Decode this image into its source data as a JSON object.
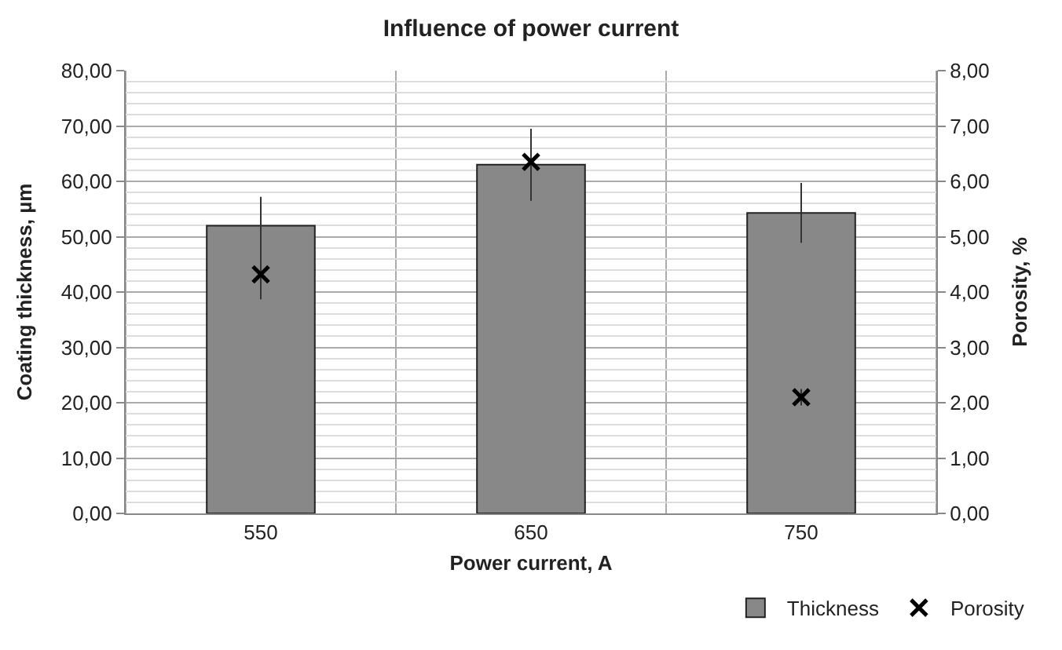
{
  "chart_data": {
    "type": "bar",
    "title": "Influence of power current",
    "xlabel": "Power current, A",
    "ylabel": "Coating thickness, µm",
    "y2label": "Porosity, %",
    "categories": [
      "550",
      "650",
      "750"
    ],
    "series": [
      {
        "name": "Thickness",
        "color": "#888888",
        "values": [
          52.0,
          63.0,
          54.3
        ],
        "errors": [
          5.2,
          6.5,
          5.4
        ]
      },
      {
        "name": "Porosity",
        "type": "scatter",
        "axis": "y2",
        "marker": "cross",
        "color": "#000000",
        "values": [
          4.32,
          6.35,
          2.1
        ],
        "errors": [
          0.45,
          null,
          0.15
        ]
      }
    ],
    "ylim": [
      0,
      80
    ],
    "yticks": [
      {
        "value": 0,
        "label": "0,00"
      },
      {
        "value": 10,
        "label": "10,00"
      },
      {
        "value": 20,
        "label": "20,00"
      },
      {
        "value": 30,
        "label": "30,00"
      },
      {
        "value": 40,
        "label": "40,00"
      },
      {
        "value": 50,
        "label": "50,00"
      },
      {
        "value": 60,
        "label": "60,00"
      },
      {
        "value": 70,
        "label": "70,00"
      },
      {
        "value": 80,
        "label": "80,00"
      }
    ],
    "y2lim": [
      0,
      8
    ],
    "y2ticks": [
      {
        "value": 0,
        "label": "0,00"
      },
      {
        "value": 1,
        "label": "1,00"
      },
      {
        "value": 2,
        "label": "2,00"
      },
      {
        "value": 3,
        "label": "3,00"
      },
      {
        "value": 4,
        "label": "4,00"
      },
      {
        "value": 5,
        "label": "5,00"
      },
      {
        "value": 6,
        "label": "6,00"
      },
      {
        "value": 7,
        "label": "7,00"
      },
      {
        "value": 8,
        "label": "8,00"
      }
    ],
    "grid": true,
    "legend": "bottom right"
  }
}
